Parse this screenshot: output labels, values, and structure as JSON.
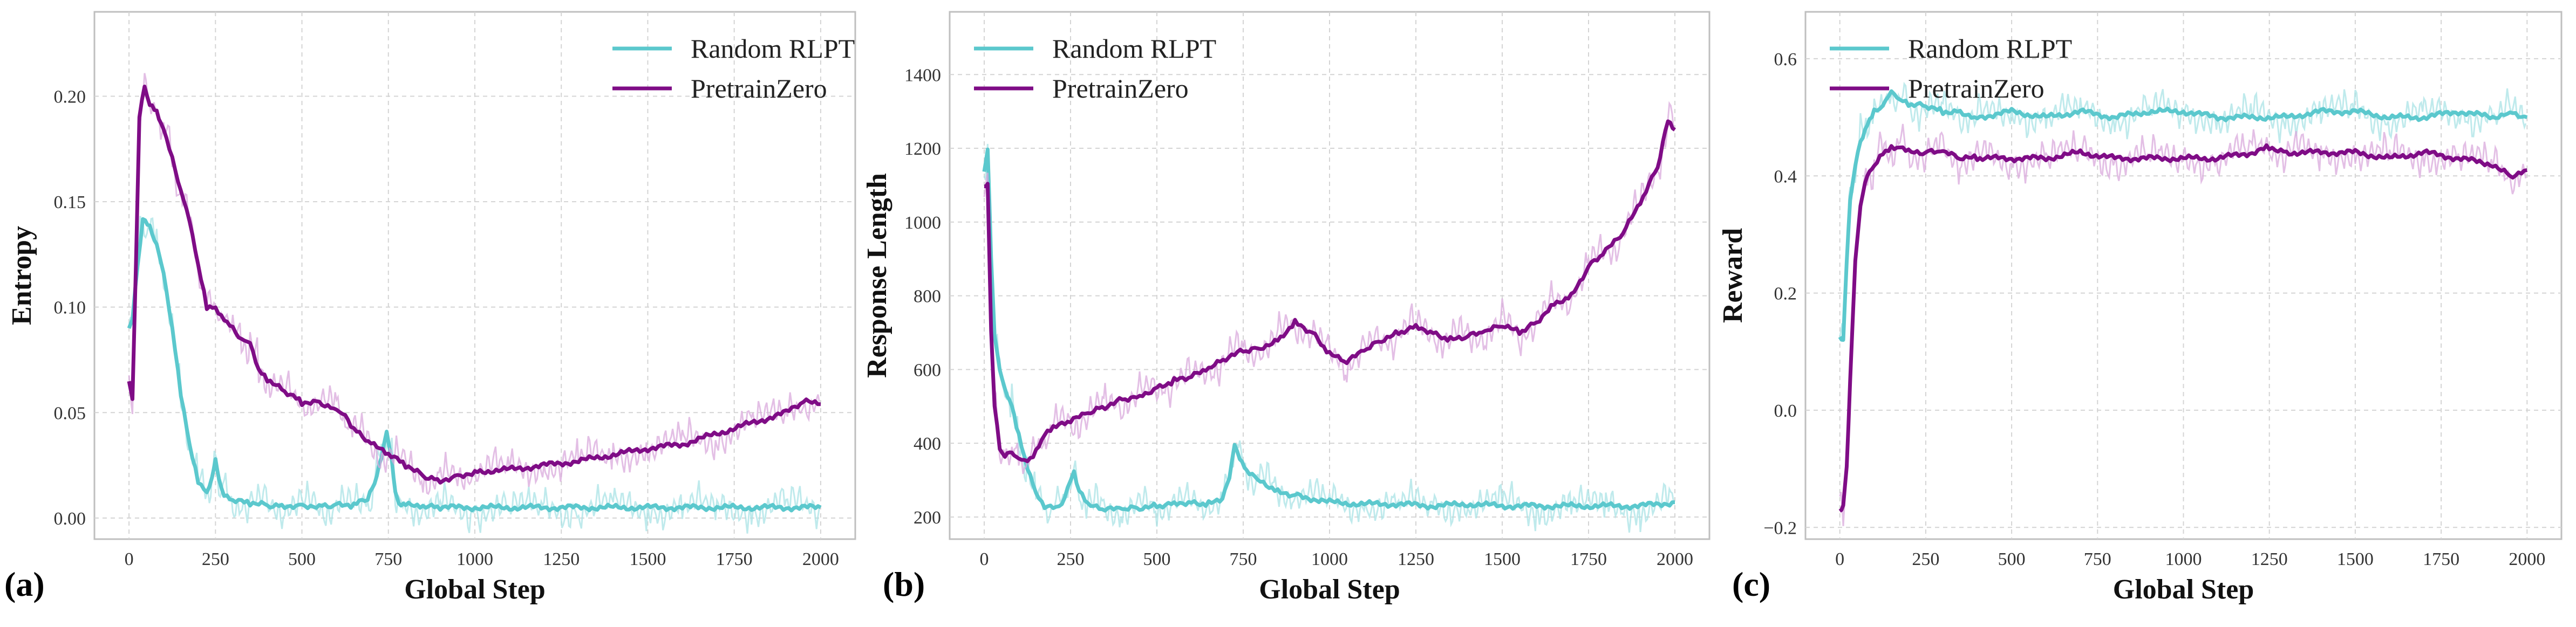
{
  "colors": {
    "random_rlpt": "#5bc8cd",
    "random_rlpt_raw": "#a9e3e6",
    "pretrainzero": "#7f0c86",
    "pretrainzero_raw": "#d9a9dc",
    "grid": "#d4d4d4",
    "frame": "#bfbfbf"
  },
  "chart_data": [
    {
      "type": "line",
      "panel_label": "(a)",
      "title": "",
      "xlabel": "Global Step",
      "ylabel": "Entropy",
      "xlim": [
        -100,
        2100
      ],
      "ylim": [
        -0.01,
        0.24
      ],
      "xticks": [
        0,
        250,
        500,
        750,
        1000,
        1250,
        1500,
        1750,
        2000
      ],
      "yticks": [
        0.0,
        0.05,
        0.1,
        0.15,
        0.2
      ],
      "ytick_labels": [
        "0.00",
        "0.05",
        "0.10",
        "0.15",
        "0.20"
      ],
      "legend": "top-right",
      "series": [
        {
          "name": "Random RLPT",
          "x": [
            0,
            10,
            25,
            40,
            60,
            80,
            100,
            125,
            150,
            175,
            200,
            225,
            240,
            250,
            260,
            275,
            300,
            350,
            400,
            450,
            500,
            550,
            600,
            650,
            690,
            710,
            730,
            745,
            760,
            770,
            780,
            800,
            850,
            900,
            1000,
            1100,
            1200,
            1300,
            1400,
            1500,
            1600,
            1700,
            1800,
            1900,
            2000
          ],
          "y": [
            0.09,
            0.095,
            0.12,
            0.143,
            0.138,
            0.13,
            0.115,
            0.09,
            0.058,
            0.035,
            0.018,
            0.012,
            0.02,
            0.027,
            0.018,
            0.01,
            0.008,
            0.007,
            0.006,
            0.006,
            0.006,
            0.006,
            0.006,
            0.006,
            0.009,
            0.016,
            0.03,
            0.041,
            0.028,
            0.012,
            0.006,
            0.006,
            0.005,
            0.005,
            0.005,
            0.005,
            0.005,
            0.005,
            0.005,
            0.005,
            0.005,
            0.005,
            0.005,
            0.005,
            0.005
          ]
        },
        {
          "name": "PretrainZero",
          "x": [
            0,
            10,
            20,
            30,
            45,
            60,
            80,
            100,
            125,
            150,
            175,
            200,
            225,
            250,
            275,
            300,
            325,
            350,
            375,
            400,
            450,
            500,
            550,
            600,
            625,
            650,
            700,
            750,
            800,
            850,
            900,
            950,
            1000,
            1100,
            1200,
            1300,
            1400,
            1500,
            1600,
            1700,
            1800,
            1900,
            1950,
            2000
          ],
          "y": [
            0.065,
            0.055,
            0.12,
            0.19,
            0.205,
            0.197,
            0.193,
            0.185,
            0.17,
            0.155,
            0.14,
            0.12,
            0.1,
            0.1,
            0.095,
            0.09,
            0.085,
            0.082,
            0.07,
            0.065,
            0.06,
            0.055,
            0.055,
            0.052,
            0.048,
            0.042,
            0.035,
            0.03,
            0.025,
            0.02,
            0.018,
            0.02,
            0.022,
            0.023,
            0.025,
            0.027,
            0.03,
            0.033,
            0.035,
            0.04,
            0.045,
            0.05,
            0.055,
            0.054
          ]
        }
      ]
    },
    {
      "type": "line",
      "panel_label": "(b)",
      "title": "",
      "xlabel": "Global Step",
      "ylabel": "Response Length",
      "xlim": [
        -100,
        2100
      ],
      "ylim": [
        140,
        1570
      ],
      "xticks": [
        0,
        250,
        500,
        750,
        1000,
        1250,
        1500,
        1750,
        2000
      ],
      "yticks": [
        200,
        400,
        600,
        800,
        1000,
        1200,
        1400
      ],
      "ytick_labels": [
        "200",
        "400",
        "600",
        "800",
        "1000",
        "1200",
        "1400"
      ],
      "legend": "top-left",
      "series": [
        {
          "name": "Random RLPT",
          "x": [
            0,
            10,
            20,
            30,
            45,
            60,
            80,
            100,
            125,
            150,
            175,
            200,
            225,
            250,
            260,
            275,
            300,
            350,
            400,
            450,
            500,
            550,
            600,
            650,
            690,
            710,
            725,
            740,
            760,
            800,
            850,
            900,
            1000,
            1100,
            1200,
            1300,
            1400,
            1500,
            1600,
            1700,
            1800,
            1900,
            2000
          ],
          "y": [
            1130,
            1200,
            900,
            700,
            600,
            550,
            500,
            420,
            330,
            260,
            230,
            225,
            240,
            300,
            320,
            270,
            230,
            220,
            220,
            225,
            230,
            240,
            240,
            235,
            250,
            300,
            400,
            360,
            330,
            300,
            270,
            260,
            240,
            235,
            235,
            230,
            235,
            230,
            230,
            230,
            230,
            230,
            240
          ]
        },
        {
          "name": "PretrainZero",
          "x": [
            0,
            10,
            20,
            30,
            45,
            60,
            80,
            100,
            125,
            150,
            175,
            200,
            250,
            300,
            350,
            400,
            450,
            500,
            550,
            600,
            650,
            700,
            750,
            800,
            850,
            900,
            950,
            1000,
            1050,
            1100,
            1150,
            1200,
            1250,
            1300,
            1350,
            1400,
            1450,
            1500,
            1550,
            1600,
            1650,
            1700,
            1750,
            1800,
            1850,
            1900,
            1950,
            1980,
            2000
          ],
          "y": [
            1100,
            1100,
            700,
            500,
            380,
            370,
            375,
            365,
            350,
            380,
            420,
            440,
            460,
            480,
            500,
            520,
            530,
            550,
            570,
            580,
            600,
            630,
            650,
            660,
            680,
            730,
            700,
            640,
            620,
            650,
            680,
            700,
            720,
            700,
            680,
            690,
            700,
            720,
            700,
            730,
            780,
            800,
            880,
            920,
            970,
            1050,
            1150,
            1280,
            1250
          ]
        }
      ]
    },
    {
      "type": "line",
      "panel_label": "(c)",
      "title": "",
      "xlabel": "Global Step",
      "ylabel": "Reward",
      "xlim": [
        -100,
        2100
      ],
      "ylim": [
        -0.22,
        0.68
      ],
      "xticks": [
        0,
        250,
        500,
        750,
        1000,
        1250,
        1500,
        1750,
        2000
      ],
      "yticks": [
        -0.2,
        0.0,
        0.2,
        0.4,
        0.6
      ],
      "ytick_labels": [
        "−0.2",
        "0.0",
        "0.2",
        "0.4",
        "0.6"
      ],
      "legend": "top-left",
      "series": [
        {
          "name": "Random RLPT",
          "x": [
            0,
            10,
            20,
            30,
            45,
            60,
            80,
            100,
            125,
            150,
            175,
            200,
            250,
            300,
            350,
            400,
            500,
            600,
            700,
            800,
            900,
            1000,
            1100,
            1200,
            1300,
            1400,
            1500,
            1600,
            1700,
            1800,
            1900,
            1950,
            2000
          ],
          "y": [
            0.12,
            0.12,
            0.25,
            0.36,
            0.42,
            0.46,
            0.49,
            0.51,
            0.52,
            0.54,
            0.53,
            0.52,
            0.52,
            0.51,
            0.51,
            0.5,
            0.51,
            0.5,
            0.51,
            0.5,
            0.51,
            0.51,
            0.5,
            0.5,
            0.5,
            0.51,
            0.51,
            0.5,
            0.5,
            0.51,
            0.5,
            0.51,
            0.5
          ]
        },
        {
          "name": "PretrainZero",
          "x": [
            0,
            10,
            20,
            30,
            45,
            60,
            80,
            100,
            125,
            150,
            175,
            200,
            250,
            300,
            350,
            400,
            500,
            600,
            700,
            800,
            900,
            1000,
            1100,
            1200,
            1250,
            1300,
            1400,
            1500,
            1600,
            1700,
            1800,
            1900,
            1950,
            2000
          ],
          "y": [
            -0.17,
            -0.16,
            -0.1,
            0.05,
            0.25,
            0.35,
            0.4,
            0.42,
            0.44,
            0.45,
            0.45,
            0.44,
            0.44,
            0.44,
            0.43,
            0.43,
            0.43,
            0.43,
            0.44,
            0.43,
            0.43,
            0.43,
            0.43,
            0.44,
            0.45,
            0.44,
            0.44,
            0.44,
            0.43,
            0.44,
            0.43,
            0.42,
            0.4,
            0.41
          ]
        }
      ]
    }
  ]
}
